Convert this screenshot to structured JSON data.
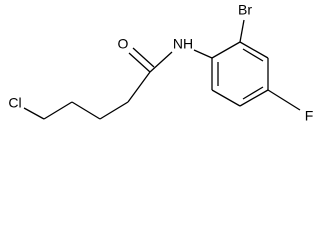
{
  "atoms": [
    {
      "label": "Cl"
    },
    {
      "label": "O"
    },
    {
      "label": "NH"
    },
    {
      "label": "Br"
    },
    {
      "label": "F"
    }
  ]
}
